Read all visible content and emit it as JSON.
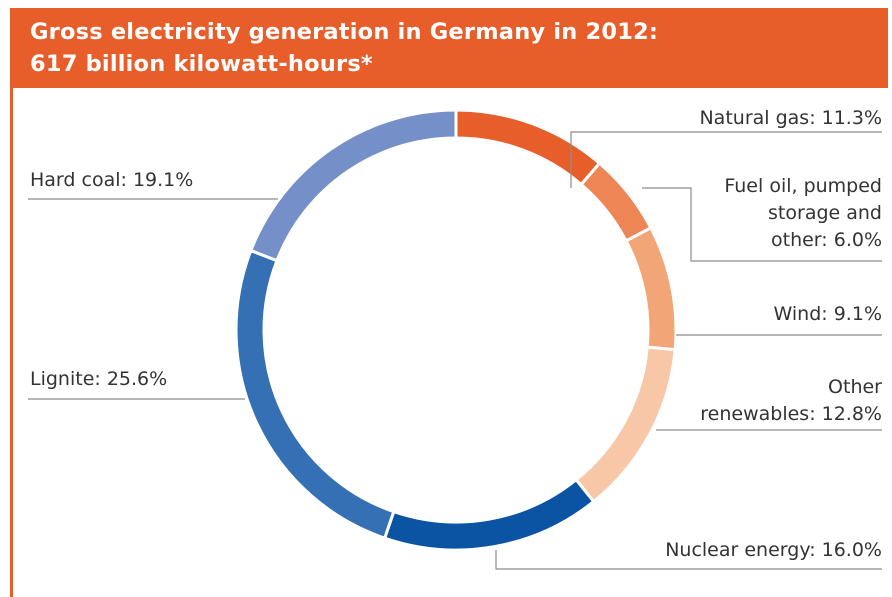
{
  "header": {
    "title_line1": "Gross electricity generation in Germany in 2012:",
    "title_line2": "617 billion kilowatt-hours*"
  },
  "colors": {
    "header_background": "#e85e2b",
    "text": "#333333",
    "leader_line": "#8c8c8c"
  },
  "chart_data": {
    "type": "pie",
    "style": "donut",
    "title": "Gross electricity generation in Germany in 2012: 617 billion kilowatt-hours*",
    "unit": "%",
    "slices": [
      {
        "name": "Natural gas",
        "value": 11.3,
        "label_lines": [
          "Natural gas: 11.3%"
        ],
        "color": "#e85e2b"
      },
      {
        "name": "Fuel oil, pumped storage and other",
        "value": 6.0,
        "label_lines": [
          "Fuel oil, pumped",
          "storage and",
          "other: 6.0%"
        ],
        "color": "#ed8555"
      },
      {
        "name": "Wind",
        "value": 9.1,
        "label_lines": [
          "Wind: 9.1%"
        ],
        "color": "#f2a678"
      },
      {
        "name": "Other renewables",
        "value": 12.8,
        "label_lines": [
          "Other",
          "renewables: 12.8%"
        ],
        "color": "#f7c7a8"
      },
      {
        "name": "Nuclear energy",
        "value": 16.0,
        "label_lines": [
          "Nuclear energy: 16.0%"
        ],
        "color": "#0b54a4"
      },
      {
        "name": "Lignite",
        "value": 25.6,
        "label_lines": [
          "Lignite: 25.6%"
        ],
        "color": "#3470b3"
      },
      {
        "name": "Hard coal",
        "value": 19.1,
        "label_lines": [
          "Hard coal: 19.1%"
        ],
        "color": "#7590c8"
      }
    ]
  }
}
